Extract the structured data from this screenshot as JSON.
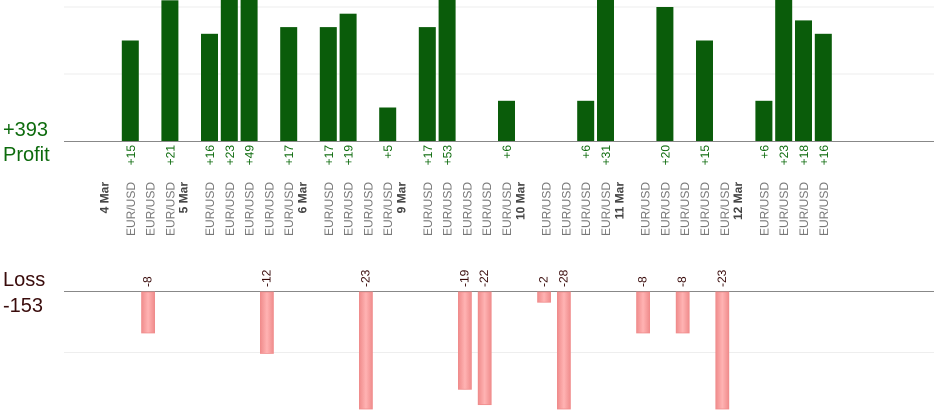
{
  "summary": {
    "profit_total": "+393",
    "profit_label": "Profit",
    "loss_label": "Loss",
    "loss_total": "-153"
  },
  "colors": {
    "profit_bar": "#0a5c0a",
    "profit_text": "#0d6b0d",
    "loss_bar": "#ffb3b3",
    "loss_bar_edge": "#f08c8c",
    "loss_text": "#3a0c0c",
    "grid": "#eeeeee",
    "axis": "#888888",
    "symbol_text": "#777777",
    "date_text": "#444444"
  },
  "chart_data": {
    "type": "bar",
    "title": "",
    "xlabel": "",
    "ylabel": "",
    "grid": true,
    "profit_ylim": [
      0,
      21
    ],
    "loss_ylim": [
      -23,
      0
    ],
    "symbol": "EUR/USD",
    "days": [
      {
        "date": "4 Mar",
        "trades": [
          15,
          -8,
          21
        ]
      },
      {
        "date": "5 Mar",
        "trades": [
          16,
          23,
          49,
          -12,
          17
        ]
      },
      {
        "date": "6 Mar",
        "trades": [
          17,
          19,
          -23,
          5
        ]
      },
      {
        "date": "9 Mar",
        "trades": [
          17,
          53,
          -19,
          -22,
          6
        ]
      },
      {
        "date": "10 Mar",
        "trades": [
          -2,
          -28,
          6,
          31
        ]
      },
      {
        "date": "11 Mar",
        "trades": [
          -8,
          20,
          -8,
          15,
          -23
        ]
      },
      {
        "date": "12 Mar",
        "trades": [
          6,
          23,
          18,
          16
        ]
      }
    ]
  }
}
